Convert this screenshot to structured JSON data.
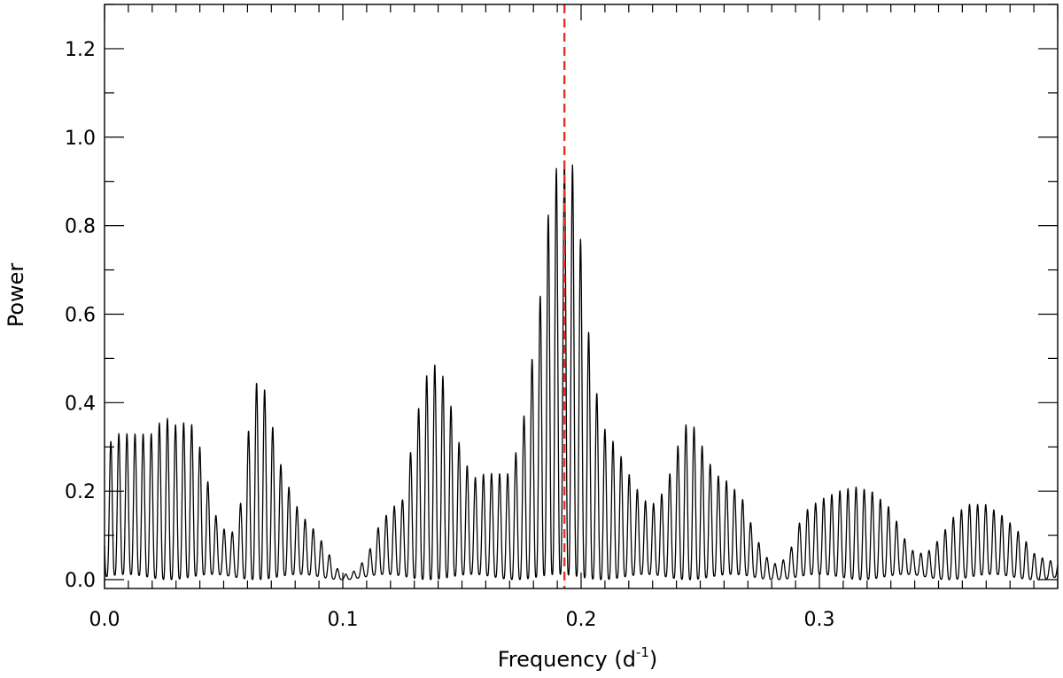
{
  "chart_data": {
    "type": "line",
    "xlabel": "Frequency (d",
    "xlabel_exponent": "-1",
    "xlabel_close": ")",
    "ylabel": "Power",
    "xlim": [
      0.0,
      0.4
    ],
    "ylim": [
      -0.02,
      1.3
    ],
    "x_ticks": [
      0.0,
      0.1,
      0.2,
      0.3
    ],
    "x_tick_labels": [
      "0.0",
      "0.1",
      "0.2",
      "0.3"
    ],
    "y_ticks": [
      0.0,
      0.2,
      0.4,
      0.6,
      0.8,
      1.0,
      1.2
    ],
    "y_tick_labels": [
      "0.0",
      "0.2",
      "0.4",
      "0.6",
      "0.8",
      "1.0",
      "1.2"
    ],
    "grid": false,
    "series": [
      {
        "color": "#000000",
        "style": "solid",
        "sampling": "envelope of oscillating periodogram; fringe spacing ~0.0034 d^-1",
        "fringe_spacing": 0.0034,
        "envelope": [
          [
            0.0,
            0.19
          ],
          [
            0.003,
            0.33
          ],
          [
            0.01,
            0.33
          ],
          [
            0.02,
            0.33
          ],
          [
            0.025,
            0.37
          ],
          [
            0.03,
            0.35
          ],
          [
            0.036,
            0.36
          ],
          [
            0.04,
            0.3
          ],
          [
            0.043,
            0.23
          ],
          [
            0.047,
            0.14
          ],
          [
            0.052,
            0.1
          ],
          [
            0.056,
            0.12
          ],
          [
            0.06,
            0.32
          ],
          [
            0.063,
            0.44
          ],
          [
            0.066,
            0.46
          ],
          [
            0.07,
            0.36
          ],
          [
            0.074,
            0.26
          ],
          [
            0.078,
            0.2
          ],
          [
            0.082,
            0.15
          ],
          [
            0.087,
            0.12
          ],
          [
            0.092,
            0.08
          ],
          [
            0.097,
            0.03
          ],
          [
            0.1,
            0.01
          ],
          [
            0.105,
            0.02
          ],
          [
            0.11,
            0.05
          ],
          [
            0.115,
            0.12
          ],
          [
            0.12,
            0.16
          ],
          [
            0.125,
            0.18
          ],
          [
            0.131,
            0.37
          ],
          [
            0.135,
            0.46
          ],
          [
            0.138,
            0.49
          ],
          [
            0.142,
            0.46
          ],
          [
            0.146,
            0.38
          ],
          [
            0.15,
            0.28
          ],
          [
            0.155,
            0.23
          ],
          [
            0.16,
            0.24
          ],
          [
            0.165,
            0.24
          ],
          [
            0.17,
            0.24
          ],
          [
            0.175,
            0.33
          ],
          [
            0.178,
            0.45
          ],
          [
            0.182,
            0.59
          ],
          [
            0.185,
            0.78
          ],
          [
            0.189,
            0.93
          ],
          [
            0.192,
            0.93
          ],
          [
            0.195,
            0.97
          ],
          [
            0.198,
            0.9
          ],
          [
            0.201,
            0.68
          ],
          [
            0.205,
            0.46
          ],
          [
            0.21,
            0.34
          ],
          [
            0.215,
            0.3
          ],
          [
            0.22,
            0.24
          ],
          [
            0.226,
            0.18
          ],
          [
            0.232,
            0.17
          ],
          [
            0.238,
            0.25
          ],
          [
            0.243,
            0.35
          ],
          [
            0.247,
            0.35
          ],
          [
            0.251,
            0.3
          ],
          [
            0.256,
            0.24
          ],
          [
            0.262,
            0.22
          ],
          [
            0.268,
            0.18
          ],
          [
            0.273,
            0.1
          ],
          [
            0.278,
            0.05
          ],
          [
            0.283,
            0.03
          ],
          [
            0.288,
            0.07
          ],
          [
            0.293,
            0.15
          ],
          [
            0.3,
            0.18
          ],
          [
            0.308,
            0.2
          ],
          [
            0.315,
            0.21
          ],
          [
            0.322,
            0.2
          ],
          [
            0.33,
            0.16
          ],
          [
            0.336,
            0.09
          ],
          [
            0.34,
            0.06
          ],
          [
            0.345,
            0.06
          ],
          [
            0.35,
            0.09
          ],
          [
            0.356,
            0.14
          ],
          [
            0.362,
            0.17
          ],
          [
            0.37,
            0.17
          ],
          [
            0.378,
            0.14
          ],
          [
            0.385,
            0.1
          ],
          [
            0.39,
            0.06
          ],
          [
            0.395,
            0.045
          ],
          [
            0.4,
            0.04
          ]
        ]
      }
    ],
    "annotations": [
      {
        "type": "vertical_line",
        "x": 0.193,
        "color": "#e8302a",
        "style": "dashed"
      }
    ]
  }
}
